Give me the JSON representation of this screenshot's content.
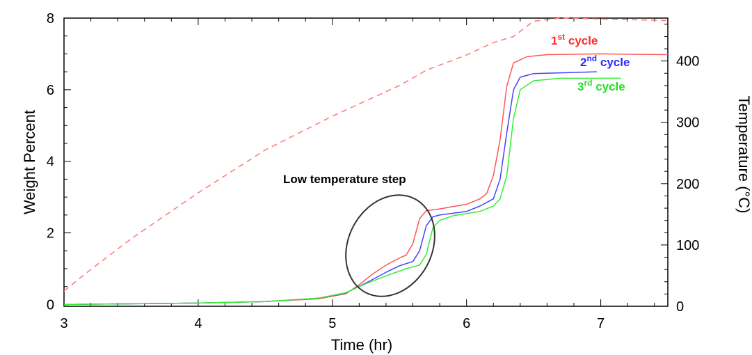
{
  "chart_data": {
    "type": "line",
    "xlabel": "Time  (hr)",
    "ylabel": "Weight Percent",
    "y2label": "Temperature   (°C)",
    "xlim": [
      3,
      7.5
    ],
    "ylim": [
      -0.05,
      8
    ],
    "y2lim": [
      0,
      470
    ],
    "x_ticks": [
      3,
      4,
      5,
      6,
      7
    ],
    "y_ticks": [
      0,
      2,
      4,
      6,
      8
    ],
    "y2_ticks": [
      0,
      100,
      200,
      300,
      400
    ],
    "annotation": "Low temperature step",
    "cycle_labels": [
      {
        "base": "1",
        "sup": "st",
        "tail": " cycle",
        "color": "#ff2a2a"
      },
      {
        "base": "2",
        "sup": "nd",
        "tail": " cycle",
        "color": "#2a2aff"
      },
      {
        "base": "3",
        "sup": "rd",
        "tail": " cycle",
        "color": "#22dd22"
      }
    ],
    "series": [
      {
        "color": "#ff5555",
        "axis": "left",
        "points": [
          [
            3.0,
            0.0
          ],
          [
            4.0,
            0.04
          ],
          [
            4.5,
            0.08
          ],
          [
            4.9,
            0.16
          ],
          [
            5.1,
            0.3
          ],
          [
            5.2,
            0.55
          ],
          [
            5.3,
            0.85
          ],
          [
            5.4,
            1.1
          ],
          [
            5.5,
            1.3
          ],
          [
            5.55,
            1.38
          ],
          [
            5.6,
            1.7
          ],
          [
            5.65,
            2.4
          ],
          [
            5.7,
            2.62
          ],
          [
            5.8,
            2.67
          ],
          [
            6.0,
            2.8
          ],
          [
            6.1,
            2.95
          ],
          [
            6.15,
            3.1
          ],
          [
            6.2,
            3.6
          ],
          [
            6.25,
            4.6
          ],
          [
            6.3,
            6.1
          ],
          [
            6.35,
            6.75
          ],
          [
            6.45,
            6.92
          ],
          [
            6.6,
            6.98
          ],
          [
            7.0,
            7.0
          ],
          [
            7.5,
            6.98
          ]
        ]
      },
      {
        "color": "#4444ff",
        "axis": "left",
        "points": [
          [
            3.0,
            0.0
          ],
          [
            4.0,
            0.04
          ],
          [
            4.5,
            0.08
          ],
          [
            4.9,
            0.18
          ],
          [
            5.1,
            0.32
          ],
          [
            5.25,
            0.6
          ],
          [
            5.4,
            0.9
          ],
          [
            5.5,
            1.08
          ],
          [
            5.6,
            1.2
          ],
          [
            5.65,
            1.5
          ],
          [
            5.7,
            2.2
          ],
          [
            5.75,
            2.45
          ],
          [
            5.8,
            2.5
          ],
          [
            6.0,
            2.6
          ],
          [
            6.1,
            2.75
          ],
          [
            6.2,
            2.95
          ],
          [
            6.25,
            3.5
          ],
          [
            6.3,
            4.8
          ],
          [
            6.35,
            6.0
          ],
          [
            6.4,
            6.35
          ],
          [
            6.5,
            6.45
          ],
          [
            6.97,
            6.5
          ]
        ]
      },
      {
        "color": "#33ee33",
        "axis": "left",
        "points": [
          [
            3.0,
            0.0
          ],
          [
            4.0,
            0.04
          ],
          [
            4.5,
            0.08
          ],
          [
            4.9,
            0.18
          ],
          [
            5.1,
            0.33
          ],
          [
            5.25,
            0.58
          ],
          [
            5.4,
            0.8
          ],
          [
            5.55,
            1.0
          ],
          [
            5.65,
            1.1
          ],
          [
            5.7,
            1.4
          ],
          [
            5.75,
            2.15
          ],
          [
            5.8,
            2.35
          ],
          [
            5.9,
            2.48
          ],
          [
            6.1,
            2.6
          ],
          [
            6.2,
            2.75
          ],
          [
            6.25,
            2.95
          ],
          [
            6.3,
            3.6
          ],
          [
            6.35,
            5.2
          ],
          [
            6.4,
            6.0
          ],
          [
            6.5,
            6.25
          ],
          [
            6.7,
            6.32
          ],
          [
            7.15,
            6.32
          ]
        ]
      },
      {
        "color": "#ff7777",
        "dashed": true,
        "axis": "right",
        "points": [
          [
            3.0,
            25
          ],
          [
            3.2,
            60
          ],
          [
            3.5,
            110
          ],
          [
            4.0,
            185
          ],
          [
            4.5,
            255
          ],
          [
            5.0,
            310
          ],
          [
            5.5,
            360
          ],
          [
            5.7,
            385
          ],
          [
            6.0,
            410
          ],
          [
            6.2,
            430
          ],
          [
            6.35,
            440
          ],
          [
            6.5,
            465
          ],
          [
            6.7,
            470
          ],
          [
            7.5,
            466
          ]
        ]
      }
    ]
  }
}
